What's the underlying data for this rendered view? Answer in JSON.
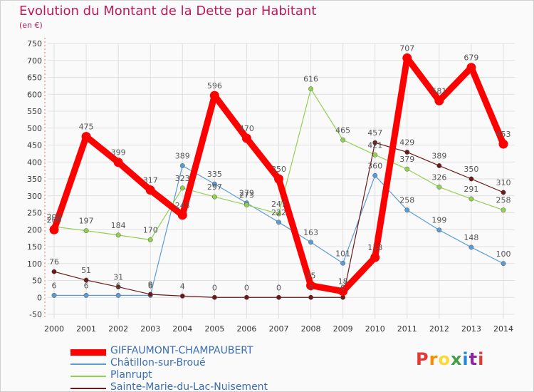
{
  "chart_data": {
    "type": "line",
    "title": "Evolution du Montant de la Dette par Habitant",
    "unit": "(en €)",
    "categories": [
      "2000",
      "2001",
      "2002",
      "2003",
      "2004",
      "2005",
      "2006",
      "2007",
      "2008",
      "2009",
      "2010",
      "2011",
      "2012",
      "2013",
      "2014"
    ],
    "y_ticks": [
      "-50",
      "0",
      "50",
      "100",
      "150",
      "200",
      "250",
      "300",
      "350",
      "400",
      "450",
      "500",
      "550",
      "600",
      "650",
      "700",
      "750"
    ],
    "ylim": [
      -50,
      750
    ],
    "grid": true,
    "legend_position": "bottom-left",
    "series": [
      {
        "name": "GIFFAUMONT-CHAMPAUBERT",
        "color": "#ff0000",
        "values": [
          200,
          475,
          399,
          317,
          243,
          596,
          470,
          350,
          35,
          18,
          118,
          707,
          581,
          679,
          453
        ],
        "labels": [
          "200",
          "475",
          "399",
          "317",
          "243",
          "596",
          "470",
          "350",
          "35",
          "18",
          "118",
          "707",
          "581",
          "679",
          "453"
        ]
      },
      {
        "name": "Châtillon-sur-Broué",
        "color": "#5b9bd5",
        "values": [
          6,
          6,
          6,
          6,
          389,
          335,
          279,
          222,
          163,
          101,
          360,
          258,
          199,
          148,
          100
        ],
        "labels": [
          "6",
          "6",
          "6",
          "6",
          "389",
          "335",
          "279",
          "222",
          "163",
          "101",
          "360",
          "258",
          "199",
          "148",
          "100"
        ]
      },
      {
        "name": "Planrupt",
        "color": "#92d050",
        "values": [
          209,
          197,
          184,
          170,
          323,
          297,
          273,
          247,
          616,
          465,
          421,
          379,
          326,
          291,
          258
        ],
        "labels": [
          "209",
          "197",
          "184",
          "170",
          "323",
          "297",
          "273",
          "247",
          "616",
          "465",
          "421",
          "379",
          "326",
          "291",
          "258"
        ]
      },
      {
        "name": "Sainte-Marie-du-Lac-Nuisement",
        "color": "#6b1a1a",
        "values": [
          76,
          51,
          31,
          9,
          4,
          0,
          0,
          0,
          0,
          0,
          457,
          429,
          389,
          350,
          310
        ],
        "labels": [
          "76",
          "51",
          "31",
          "9",
          "4",
          "0",
          "0",
          "0",
          "0",
          "0",
          "457",
          "429",
          "389",
          "350",
          "310"
        ]
      }
    ]
  },
  "branding": {
    "logo_text": "Proxiti",
    "logo_colors": [
      "#e53935",
      "#fb8c00",
      "#fdd835",
      "#43a047",
      "#1e88e5",
      "#8e24aa",
      "#e53935"
    ]
  }
}
